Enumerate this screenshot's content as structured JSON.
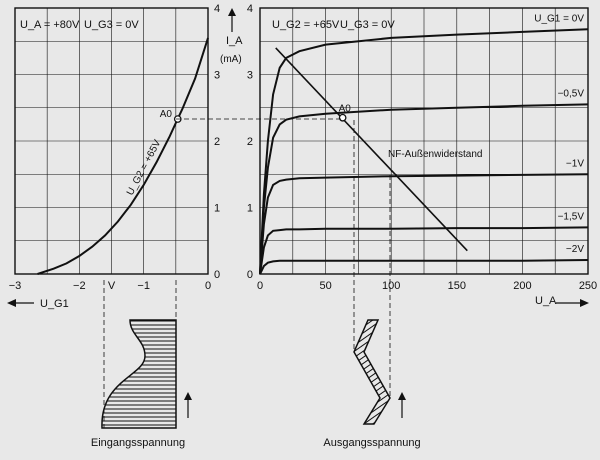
{
  "chart_data": [
    {
      "id": "left",
      "type": "line",
      "x_ticks": [
        {
          "value": -3,
          "label": "−3"
        },
        {
          "value": -2,
          "label": "−2"
        },
        {
          "value": -1,
          "label": "−1"
        },
        {
          "value": 0,
          "label": "0"
        }
      ],
      "extra_x_label": {
        "value": -1.5,
        "label": "V"
      },
      "y_ticks": [
        {
          "value": 0,
          "label": "0"
        },
        {
          "value": 1,
          "label": "1"
        },
        {
          "value": 2,
          "label": "2"
        },
        {
          "value": 3,
          "label": "3"
        },
        {
          "value": 4,
          "label": "4"
        }
      ],
      "xlim": [
        -3,
        0
      ],
      "ylim": [
        0,
        4
      ],
      "xlabel": "U_G1",
      "ylabel": "I_A",
      "ylabel_unit": "(mA)",
      "conditions": [
        "U_A = +80V",
        "U_G3 = 0V"
      ],
      "series": [
        {
          "name": "U_G2 = +65V",
          "x": [
            -2.65,
            -2.4,
            -2.2,
            -2.0,
            -1.8,
            -1.6,
            -1.4,
            -1.2,
            -1.0,
            -0.8,
            -0.6,
            -0.5,
            -0.4,
            -0.2,
            0.0
          ],
          "y": [
            0.0,
            0.08,
            0.16,
            0.27,
            0.41,
            0.58,
            0.79,
            1.04,
            1.34,
            1.68,
            2.06,
            2.27,
            2.48,
            2.94,
            3.55
          ]
        }
      ],
      "operating_point": {
        "label": "A0",
        "x": -0.47,
        "y": 2.33
      }
    },
    {
      "id": "right",
      "type": "line",
      "x_ticks": [
        {
          "value": 0,
          "label": "0"
        },
        {
          "value": 50,
          "label": "50"
        },
        {
          "value": 100,
          "label": "100"
        },
        {
          "value": 150,
          "label": "150"
        },
        {
          "value": 200,
          "label": "200"
        },
        {
          "value": 250,
          "label": "250"
        }
      ],
      "y_ticks": [
        {
          "value": 0,
          "label": "0"
        },
        {
          "value": 1,
          "label": "1"
        },
        {
          "value": 2,
          "label": "2"
        },
        {
          "value": 3,
          "label": "3"
        },
        {
          "value": 4,
          "label": "4"
        }
      ],
      "xlim": [
        0,
        250
      ],
      "ylim": [
        0,
        4
      ],
      "xlabel": "U_A",
      "conditions": [
        "U_G2 = +65V",
        "U_G3 = 0V"
      ],
      "series": [
        {
          "name": "U_G1 = 0V",
          "x": [
            0,
            3,
            6,
            10,
            15,
            20,
            30,
            50,
            100,
            150,
            200,
            250
          ],
          "y": [
            0,
            1.2,
            2.0,
            2.7,
            3.1,
            3.25,
            3.35,
            3.45,
            3.55,
            3.6,
            3.64,
            3.68
          ]
        },
        {
          "name": "−0,5V",
          "x": [
            0,
            3,
            6,
            10,
            15,
            20,
            30,
            50,
            100,
            150,
            200,
            250
          ],
          "y": [
            0,
            1.0,
            1.6,
            2.05,
            2.25,
            2.32,
            2.37,
            2.41,
            2.47,
            2.5,
            2.53,
            2.55
          ]
        },
        {
          "name": "−1V",
          "x": [
            0,
            3,
            6,
            10,
            15,
            20,
            30,
            50,
            100,
            150,
            200,
            250
          ],
          "y": [
            0,
            0.75,
            1.15,
            1.34,
            1.4,
            1.42,
            1.44,
            1.45,
            1.47,
            1.48,
            1.49,
            1.5
          ]
        },
        {
          "name": "−1,5V",
          "x": [
            0,
            3,
            6,
            10,
            15,
            20,
            30,
            50,
            100,
            150,
            200,
            250
          ],
          "y": [
            0,
            0.4,
            0.58,
            0.65,
            0.66,
            0.67,
            0.67,
            0.68,
            0.68,
            0.69,
            0.69,
            0.7
          ]
        },
        {
          "name": "−2V",
          "x": [
            0,
            3,
            6,
            10,
            15,
            20,
            30,
            50,
            100,
            150,
            200,
            250
          ],
          "y": [
            0,
            0.12,
            0.17,
            0.19,
            0.2,
            0.2,
            0.2,
            0.2,
            0.2,
            0.2,
            0.2,
            0.21
          ]
        }
      ],
      "load_line": {
        "label": "NF-Außenwiderstand",
        "x": [
          12,
          158
        ],
        "y": [
          3.4,
          0.35
        ]
      },
      "operating_point": {
        "label": "A0",
        "x": 63,
        "y": 2.35
      }
    }
  ],
  "waveforms": {
    "input_label": "Eingangsspannung",
    "output_label": "Ausgangsspannung"
  }
}
